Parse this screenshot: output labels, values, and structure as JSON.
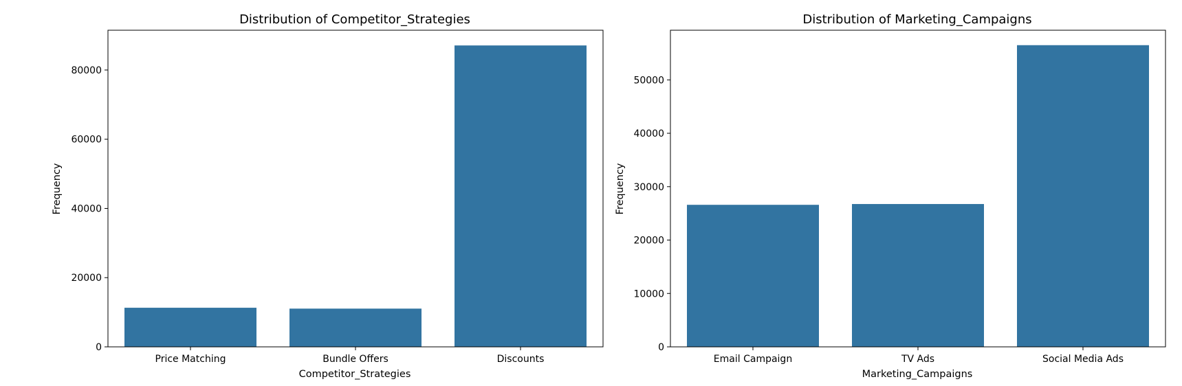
{
  "chart_data": [
    {
      "type": "bar",
      "title": "Distribution of Competitor_Strategies",
      "xlabel": "Competitor_Strategies",
      "ylabel": "Frequency",
      "categories": [
        "Price Matching",
        "Bundle Offers",
        "Discounts"
      ],
      "values": [
        11300,
        11050,
        87100
      ],
      "ylim": [
        0,
        91500
      ],
      "yticks": [
        0,
        20000,
        40000,
        60000,
        80000
      ],
      "ytick_labels": [
        "0",
        "20000",
        "40000",
        "60000",
        "80000"
      ],
      "bar_color": "#3274a1",
      "grid": false,
      "legend": "none"
    },
    {
      "type": "bar",
      "title": "Distribution of Marketing_Campaigns",
      "xlabel": "Marketing_Campaigns",
      "ylabel": "Frequency",
      "categories": [
        "Email Campaign",
        "TV Ads",
        "Social Media Ads"
      ],
      "values": [
        26600,
        26750,
        56500
      ],
      "ylim": [
        0,
        59300
      ],
      "yticks": [
        0,
        10000,
        20000,
        30000,
        40000,
        50000
      ],
      "ytick_labels": [
        "0",
        "10000",
        "20000",
        "30000",
        "40000",
        "50000"
      ],
      "bar_color": "#3274a1",
      "grid": false,
      "legend": "none"
    }
  ]
}
